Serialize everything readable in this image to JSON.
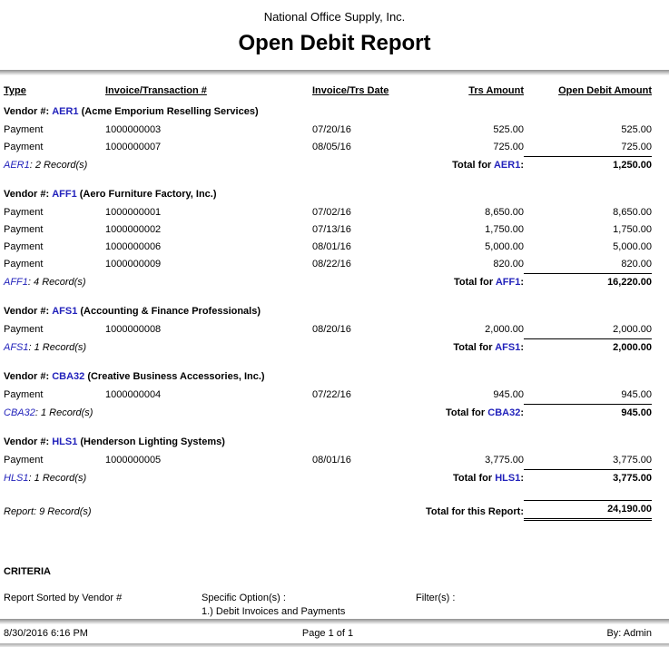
{
  "colors": {
    "code_blue": "#2222bb"
  },
  "report": {
    "company": "National Office Supply, Inc.",
    "title": "Open Debit Report",
    "columns": {
      "type": "Type",
      "invoice": "Invoice/Transaction #",
      "date": "Invoice/Trs Date",
      "trs_amount": "Trs Amount",
      "open_debit": "Open Debit Amount"
    },
    "groups": [
      {
        "vendor_label": "Vendor #:",
        "vendor_code": "AER1",
        "vendor_name": "(Acme Emporium Reselling Services)",
        "rows": [
          {
            "type": "Payment",
            "invoice": "1000000003",
            "date": "07/20/16",
            "trs": "525.00",
            "open": "525.00"
          },
          {
            "type": "Payment",
            "invoice": "1000000007",
            "date": "08/05/16",
            "trs": "725.00",
            "open": "725.00"
          }
        ],
        "records_code": "AER1",
        "records_rest": ": 2 Record(s)",
        "total_prefix": "Total for",
        "total_code": "AER1",
        "total_suffix": ":",
        "total_amount": "1,250.00"
      },
      {
        "vendor_label": "Vendor #:",
        "vendor_code": "AFF1",
        "vendor_name": "(Aero Furniture Factory, Inc.)",
        "rows": [
          {
            "type": "Payment",
            "invoice": "1000000001",
            "date": "07/02/16",
            "trs": "8,650.00",
            "open": "8,650.00"
          },
          {
            "type": "Payment",
            "invoice": "1000000002",
            "date": "07/13/16",
            "trs": "1,750.00",
            "open": "1,750.00"
          },
          {
            "type": "Payment",
            "invoice": "1000000006",
            "date": "08/01/16",
            "trs": "5,000.00",
            "open": "5,000.00"
          },
          {
            "type": "Payment",
            "invoice": "1000000009",
            "date": "08/22/16",
            "trs": "820.00",
            "open": "820.00"
          }
        ],
        "records_code": "AFF1",
        "records_rest": ": 4 Record(s)",
        "total_prefix": "Total for",
        "total_code": "AFF1",
        "total_suffix": ":",
        "total_amount": "16,220.00"
      },
      {
        "vendor_label": "Vendor #:",
        "vendor_code": "AFS1",
        "vendor_name": "(Accounting & Finance Professionals)",
        "rows": [
          {
            "type": "Payment",
            "invoice": "1000000008",
            "date": "08/20/16",
            "trs": "2,000.00",
            "open": "2,000.00"
          }
        ],
        "records_code": "AFS1",
        "records_rest": ": 1 Record(s)",
        "total_prefix": "Total for",
        "total_code": "AFS1",
        "total_suffix": ":",
        "total_amount": "2,000.00"
      },
      {
        "vendor_label": "Vendor #:",
        "vendor_code": "CBA32",
        "vendor_name": "(Creative Business Accessories, Inc.)",
        "rows": [
          {
            "type": "Payment",
            "invoice": "1000000004",
            "date": "07/22/16",
            "trs": "945.00",
            "open": "945.00"
          }
        ],
        "records_code": "CBA32",
        "records_rest": ": 1 Record(s)",
        "total_prefix": "Total for",
        "total_code": "CBA32",
        "total_suffix": ":",
        "total_amount": "945.00"
      },
      {
        "vendor_label": "Vendor #:",
        "vendor_code": "HLS1",
        "vendor_name": "(Henderson Lighting Systems)",
        "rows": [
          {
            "type": "Payment",
            "invoice": "1000000005",
            "date": "08/01/16",
            "trs": "3,775.00",
            "open": "3,775.00"
          }
        ],
        "records_code": "HLS1",
        "records_rest": ": 1 Record(s)",
        "total_prefix": "Total for",
        "total_code": "HLS1",
        "total_suffix": ":",
        "total_amount": "3,775.00"
      }
    ],
    "summary": {
      "records": "Report: 9 Record(s)",
      "total_label": "Total for this Report:",
      "total_amount": "24,190.00"
    },
    "criteria": {
      "heading": "CRITERIA",
      "sorted_by": "Report Sorted by Vendor #",
      "options_label": "Specific Option(s) :",
      "options_value": "1.) Debit Invoices and Payments",
      "filters_label": "Filter(s) :"
    },
    "footer": {
      "datetime": "8/30/2016 6:16 PM",
      "page": "Page 1 of 1",
      "by": "By: Admin"
    }
  }
}
